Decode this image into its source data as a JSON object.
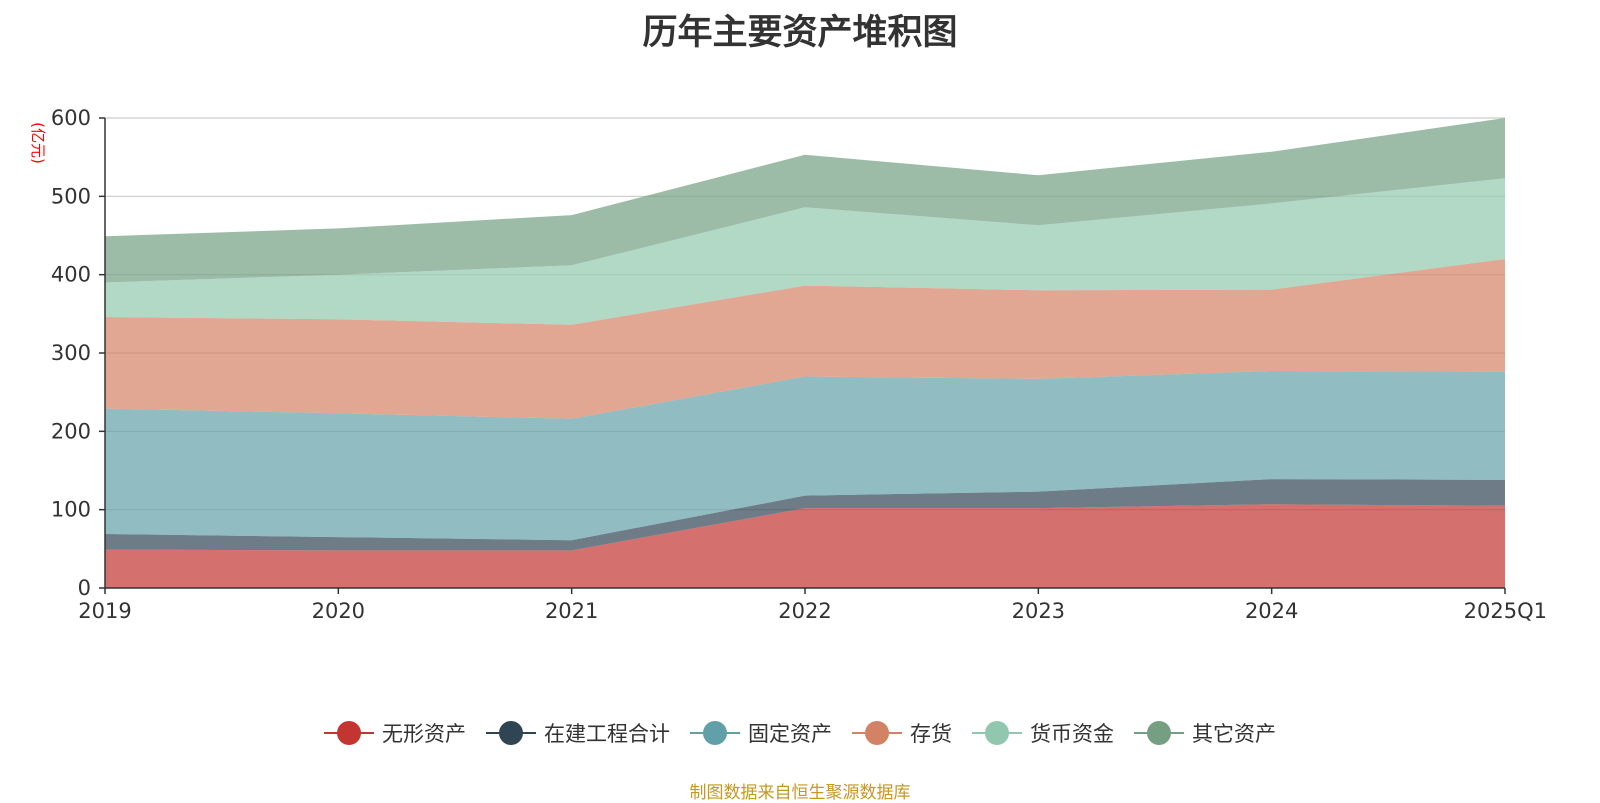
{
  "chart_data": {
    "type": "area",
    "stacked": true,
    "title": "历年主要资产堆积图",
    "unit_label": "(亿元)",
    "x": [
      "2019",
      "2020",
      "2021",
      "2022",
      "2023",
      "2024",
      "2025Q1"
    ],
    "ylim": [
      0,
      600
    ],
    "yticks": [
      0,
      100,
      200,
      300,
      400,
      500,
      600
    ],
    "grid": true,
    "legend_position": "bottom",
    "series": [
      {
        "name": "无形资产",
        "color": "#c23531",
        "values": [
          49,
          48,
          48,
          102,
          102,
          107,
          105
        ]
      },
      {
        "name": "在建工程合计",
        "color": "#2f4554",
        "values": [
          20,
          17,
          13,
          16,
          21,
          32,
          33
        ]
      },
      {
        "name": "固定资产",
        "color": "#61a0a8",
        "values": [
          160,
          158,
          155,
          152,
          144,
          138,
          138
        ]
      },
      {
        "name": "存货",
        "color": "#d48265",
        "values": [
          117,
          120,
          120,
          116,
          113,
          104,
          144
        ]
      },
      {
        "name": "货币资金",
        "color": "#91c7ae",
        "values": [
          44,
          57,
          76,
          100,
          83,
          110,
          103
        ]
      },
      {
        "name": "其它资产",
        "color": "#749f83",
        "values": [
          59,
          59,
          64,
          67,
          64,
          66,
          77
        ]
      }
    ]
  },
  "source_note": "制图数据来自恒生聚源数据库"
}
